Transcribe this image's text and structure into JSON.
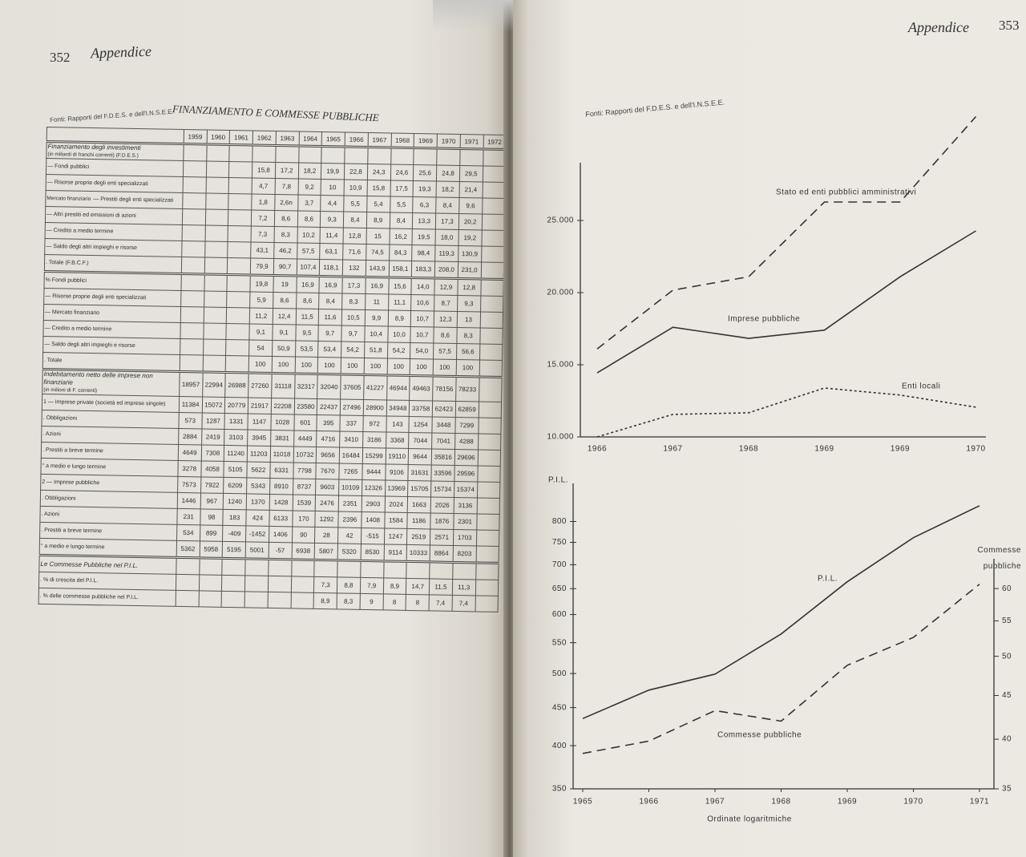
{
  "left_page": {
    "page_number": "352",
    "header": "Appendice",
    "source": "Fonti: Rapporti del F.D.E.S. e dell'I.N.S.E.E.",
    "table": {
      "title": "FINANZIAMENTO E COMMESSE PUBBLICHE",
      "years": [
        "1959",
        "1960",
        "1961",
        "1962",
        "1963",
        "1964",
        "1965",
        "1966",
        "1967",
        "1968",
        "1969",
        "1970",
        "1971",
        "1972"
      ],
      "sections": [
        {
          "rows": [
            {
              "label": "Finanziamento degli investimenti",
              "note": "(in miliardi di franchi correnti) (F.D.E.S.)"
            },
            {
              "label": "— Fondi pubblici",
              "cells": [
                null,
                null,
                null,
                "15,8",
                "17,2",
                "18,2",
                "19,9",
                "22,8",
                "24,3",
                "24,6",
                "25,6",
                "24,8",
                "29,5",
                null
              ]
            },
            {
              "label": "— Risorse proprie degli enti specializzati",
              "cells": [
                null,
                null,
                null,
                "4,7",
                "7,8",
                "9,2",
                "10",
                "10,9",
                "15,8",
                "17,5",
                "19,3",
                "18,2",
                "21,4",
                null
              ]
            },
            {
              "group": "Mercato finanziario",
              "label": "— Prestiti degli enti specializzati",
              "cells": [
                null,
                null,
                null,
                "1,8",
                "2,6n",
                "3,7",
                "4,4",
                "5,5",
                "5,4",
                "5,5",
                "6,3",
                "8,4",
                "9,6",
                null
              ]
            },
            {
              "label": "— Altri prestiti ed emissioni di azioni",
              "cells": [
                null,
                null,
                null,
                "7,2",
                "8,6",
                "8,6",
                "9,3",
                "8,4",
                "8,9",
                "8,4",
                "13,3",
                "17,3",
                "20,2",
                null
              ]
            },
            {
              "label": "— Credito a medio termine",
              "cells": [
                null,
                null,
                null,
                "7,3",
                "8,3",
                "10,2",
                "11,4",
                "12,8",
                "15",
                "16,2",
                "19,5",
                "18,0",
                "19,2",
                null
              ]
            },
            {
              "label": "— Saldo degli altri impieghi e risorse",
              "cells": [
                null,
                null,
                null,
                "43,1",
                "46,2",
                "57,5",
                "63,1",
                "71,6",
                "74,5",
                "84,3",
                "98,4",
                "119,3",
                "130,9",
                null
              ]
            },
            {
              "label": ". Totale (F.B.C.F.)",
              "cells": [
                null,
                null,
                null,
                "79,9",
                "90,7",
                "107,4",
                "118,1",
                "132",
                "143,9",
                "158,1",
                "183,3",
                "208,0",
                "231,0",
                null
              ]
            }
          ]
        },
        {
          "rows": [
            {
              "label": "% Fondi pubblici",
              "cells": [
                null,
                null,
                null,
                "19,8",
                "19",
                "16,9",
                "16,9",
                "17,3",
                "16,9",
                "15,6",
                "14,0",
                "12,9",
                "12,8",
                null
              ]
            },
            {
              "label": "— Risorse proprie degli enti specializzati",
              "cells": [
                null,
                null,
                null,
                "5,9",
                "8,6",
                "8,6",
                "8,4",
                "8,3",
                "11",
                "11,1",
                "10,6",
                "8,7",
                "9,3",
                null
              ]
            },
            {
              "label": "— Mercato finanziario",
              "cells": [
                null,
                null,
                null,
                "11,2",
                "12,4",
                "11,5",
                "11,6",
                "10,5",
                "9,9",
                "8,9",
                "10,7",
                "12,3",
                "13",
                null
              ]
            },
            {
              "label": "— Credito a medio termine",
              "cells": [
                null,
                null,
                null,
                "9,1",
                "9,1",
                "9,5",
                "9,7",
                "9,7",
                "10,4",
                "10,0",
                "10,7",
                "8,6",
                "8,3",
                null
              ]
            },
            {
              "label": "— Saldo degli altri impieghi e risorse",
              "cells": [
                null,
                null,
                null,
                "54",
                "50,9",
                "53,5",
                "53,4",
                "54,2",
                "51,8",
                "54,2",
                "54,0",
                "57,5",
                "56,6",
                null
              ]
            },
            {
              "label": ". Totale",
              "cells": [
                null,
                null,
                null,
                "100",
                "100",
                "100",
                "100",
                "100",
                "100",
                "100",
                "100",
                "100",
                "100",
                null
              ]
            }
          ]
        },
        {
          "rows": [
            {
              "label": "Indebitamento netto delle imprese non finanziarie",
              "note": "(in milioni di F. correnti)",
              "cells": [
                "18957",
                "22994",
                "26988",
                "27260",
                "31118",
                "32317",
                "32040",
                "37605",
                "41227",
                "46944",
                "49463",
                "78156",
                "78233",
                null
              ]
            },
            {
              "label": "1 — Imprese private (società ed imprese singole)",
              "cells": [
                "11384",
                "15072",
                "20779",
                "21917",
                "22208",
                "23580",
                "22437",
                "27496",
                "28900",
                "34948",
                "33758",
                "62423",
                "62859",
                null
              ]
            },
            {
              "label": ". Obbligazioni",
              "cells": [
                "573",
                "1287",
                "1331",
                "1147",
                "1028",
                "601",
                "395",
                "337",
                "972",
                "143",
                "1254",
                "3448",
                "7299",
                null
              ]
            },
            {
              "label": ". Azioni",
              "cells": [
                "2884",
                "2419",
                "3103",
                "3945",
                "3831",
                "4449",
                "4716",
                "3410",
                "3186",
                "3368",
                "7044",
                "7041",
                "4288",
                null
              ]
            },
            {
              "label": ". Prestiti a breve termine",
              "cells": [
                "4649",
                "7308",
                "11240",
                "11203",
                "11018",
                "10732",
                "9656",
                "16484",
                "15299",
                "19110",
                "9644",
                "35816",
                "29696",
                null
              ]
            },
            {
              "label": "\" a medio e lungo termine",
              "cells": [
                "3278",
                "4058",
                "5105",
                "5622",
                "6331",
                "7798",
                "7670",
                "7265",
                "9444",
                "9106",
                "31631",
                "33596",
                "29596",
                null
              ]
            },
            {
              "label": "2 — Imprese pubbliche",
              "cells": [
                "7573",
                "7922",
                "6209",
                "5343",
                "8910",
                "8737",
                "9603",
                "10109",
                "12326",
                "13969",
                "15705",
                "15734",
                "15374",
                null
              ]
            },
            {
              "label": ". Obbligazioni",
              "cells": [
                "1446",
                "967",
                "1240",
                "1370",
                "1428",
                "1539",
                "2476",
                "2351",
                "2903",
                "2024",
                "1663",
                "2026",
                "3136",
                null
              ]
            },
            {
              "label": ". Azioni",
              "cells": [
                "231",
                "98",
                "183",
                "424",
                "6133",
                "170",
                "1292",
                "2396",
                "1408",
                "1584",
                "1186",
                "1876",
                "2301",
                null
              ]
            },
            {
              "label": ". Prestiti a breve termine",
              "cells": [
                "534",
                "899",
                "-409",
                "-1452",
                "1406",
                "90",
                "28",
                "42",
                "-515",
                "1247",
                "2519",
                "2571",
                "1703",
                null
              ]
            },
            {
              "label": "\" a medio e lungo termine",
              "cells": [
                "5362",
                "5958",
                "5195",
                "5001",
                "-57",
                "6938",
                "5807",
                "5320",
                "8530",
                "9114",
                "10333",
                "8864",
                "8203",
                null
              ]
            }
          ]
        },
        {
          "rows": [
            {
              "label": "Le Commesse Pubbliche nel P.I.L."
            },
            {
              "label": ". % di crescita del P.I.L.",
              "cells": [
                null,
                null,
                null,
                null,
                null,
                null,
                "7,3",
                "8,8",
                "7,9",
                "8,9",
                "14,7",
                "11,5",
                "11,3",
                null
              ]
            },
            {
              "label": ". % delle commesse pubbliche nel P.I.L.",
              "cells": [
                null,
                null,
                null,
                null,
                null,
                null,
                "8,9",
                "8,3",
                "9",
                "8",
                "8",
                "7,4",
                "7,4",
                null
              ]
            }
          ]
        }
      ]
    }
  },
  "right_page": {
    "page_number": "353",
    "header": "Appendice",
    "source": "Fonti: Rapporti del F.D.E.S. e dell'I.N.S.E.E."
  },
  "chart_data": [
    {
      "type": "line",
      "categories": [
        "1966",
        "1967",
        "1968",
        "1969",
        "1969",
        "1970"
      ],
      "ylim": [
        10000,
        29000
      ],
      "yticks": [
        {
          "value": 10000,
          "label": "10.000"
        },
        {
          "value": 15000,
          "label": "15.000"
        },
        {
          "value": 20000,
          "label": "20.000"
        },
        {
          "value": 25000,
          "label": "25.000"
        }
      ],
      "series": [
        {
          "name": "Stato ed enti pubblici amministrativi",
          "color": "#333333",
          "line_style": "dashed",
          "values": [
            16100,
            20170,
            21100,
            26280,
            26280,
            32200
          ]
        },
        {
          "name": "Imprese pubbliche",
          "color": "#333333",
          "line_style": "solid",
          "values": [
            14440,
            17600,
            16830,
            17400,
            21100,
            24280
          ]
        },
        {
          "name": "Enti locali",
          "color": "#333333",
          "line_style": "dotted",
          "values": [
            10000,
            11560,
            11670,
            13390,
            12900,
            12060
          ]
        }
      ]
    },
    {
      "type": "line",
      "x": [
        1965,
        1966,
        1967,
        1968,
        1969,
        1970,
        1971
      ],
      "xlim": [
        1965,
        1971
      ],
      "xticks": [
        1965,
        1966,
        1967,
        1968,
        1969,
        1970,
        1971
      ],
      "log_scale": true,
      "ylim": [
        350,
        900
      ],
      "yticks": [
        350,
        400,
        450,
        500,
        550,
        600,
        650,
        700,
        750,
        800
      ],
      "y2lim": [
        35,
        65
      ],
      "y2ticks": [
        35,
        40,
        45,
        50,
        55,
        60
      ],
      "y_label": "P.I.L.",
      "y2_label": "Commesse pubbliche",
      "x_label": "Ordinate logaritmiche",
      "series": [
        {
          "name": "P.I.L.",
          "color": "#333333",
          "line_style": "solid",
          "values": [
            435,
            475,
            499,
            565,
            664,
            761,
            840
          ]
        },
        {
          "name": "Commesse pubbliche",
          "color": "#333333",
          "line_style": "dashed",
          "axis": "y2",
          "values": [
            38.5,
            39.8,
            43.2,
            42.0,
            48.8,
            52.6,
            60.7
          ]
        }
      ]
    }
  ]
}
